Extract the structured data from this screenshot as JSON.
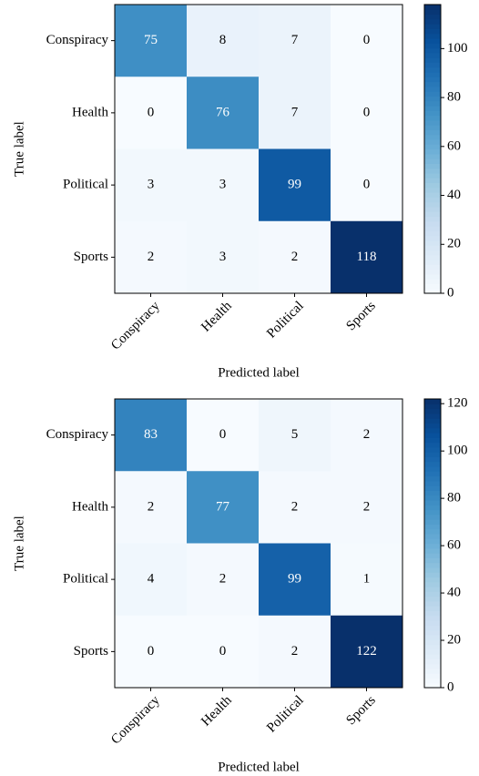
{
  "chart_data": [
    {
      "type": "heatmap",
      "colormap": "Blues",
      "xlabel": "Predicted label",
      "ylabel": "True label",
      "x_categories": [
        "Conspiracy",
        "Health",
        "Political",
        "Sports"
      ],
      "y_categories": [
        "Conspiracy",
        "Health",
        "Political",
        "Sports"
      ],
      "values": [
        [
          75,
          8,
          7,
          0
        ],
        [
          0,
          76,
          7,
          0
        ],
        [
          3,
          3,
          99,
          0
        ],
        [
          2,
          3,
          2,
          118
        ]
      ],
      "clim": [
        0,
        118
      ],
      "cticks": [
        0,
        20,
        40,
        60,
        80,
        100
      ]
    },
    {
      "type": "heatmap",
      "colormap": "Blues",
      "xlabel": "Predicted label",
      "ylabel": "True label",
      "x_categories": [
        "Conspiracy",
        "Health",
        "Political",
        "Sports"
      ],
      "y_categories": [
        "Conspiracy",
        "Health",
        "Political",
        "Sports"
      ],
      "values": [
        [
          83,
          0,
          5,
          2
        ],
        [
          2,
          77,
          2,
          2
        ],
        [
          4,
          2,
          99,
          1
        ],
        [
          0,
          0,
          2,
          122
        ]
      ],
      "clim": [
        0,
        122
      ],
      "cticks": [
        0,
        20,
        40,
        60,
        80,
        100,
        120
      ]
    }
  ]
}
